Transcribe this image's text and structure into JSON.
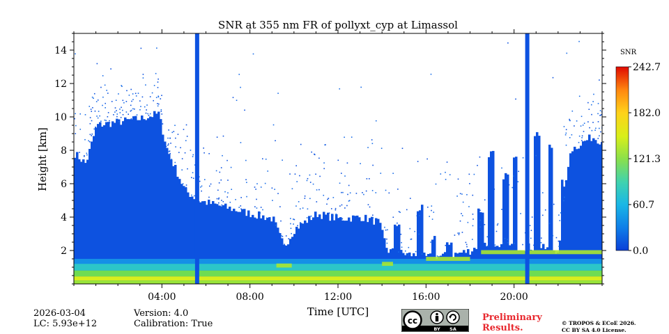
{
  "chart_data": {
    "type": "heatmap",
    "title": "SNR at 355 nm FR of pollyxt_cyp at Limassol",
    "xlabel": "Time [UTC]",
    "ylabel": "Height [km]",
    "xlim_hours": [
      0,
      24
    ],
    "ylim": [
      0,
      15
    ],
    "x_ticks": [
      {
        "hour": 4,
        "label": "04:00"
      },
      {
        "hour": 8,
        "label": "08:00"
      },
      {
        "hour": 12,
        "label": "12:00"
      },
      {
        "hour": 16,
        "label": "16:00"
      },
      {
        "hour": 20,
        "label": "20:00"
      }
    ],
    "y_ticks": [
      {
        "value": 2,
        "label": "2"
      },
      {
        "value": 4,
        "label": "4"
      },
      {
        "value": 6,
        "label": "6"
      },
      {
        "value": 8,
        "label": "8"
      },
      {
        "value": 10,
        "label": "10"
      },
      {
        "value": 12,
        "label": "12"
      },
      {
        "value": 14,
        "label": "14"
      }
    ],
    "colorbar": {
      "label": "SNR",
      "min": 0.0,
      "max": 242.7,
      "ticks": [
        {
          "value": 0.0,
          "label": "0.0"
        },
        {
          "value": 60.7,
          "label": "60.7"
        },
        {
          "value": 121.3,
          "label": "121.3"
        },
        {
          "value": 182.0,
          "label": "182.0"
        },
        {
          "value": 242.7,
          "label": "242.7"
        }
      ],
      "colormap": [
        "#0a3fd8",
        "#0f7ce8",
        "#1ab7e6",
        "#3fd2b0",
        "#8be04a",
        "#d8ef1a",
        "#ffd21a",
        "#ff8a10",
        "#ff3a0a",
        "#e00a00"
      ]
    },
    "data_gaps_hours": [
      5.6,
      20.6
    ],
    "signal_top_km": [
      [
        0.0,
        7.8
      ],
      [
        0.5,
        7.2
      ],
      [
        1.0,
        9.5
      ],
      [
        2.0,
        9.7
      ],
      [
        3.0,
        9.9
      ],
      [
        3.8,
        10.2
      ],
      [
        4.2,
        8.0
      ],
      [
        5.0,
        5.6
      ],
      [
        5.6,
        5.0
      ],
      [
        6.5,
        4.7
      ],
      [
        8.0,
        4.2
      ],
      [
        9.0,
        3.9
      ],
      [
        9.5,
        2.2
      ],
      [
        10.0,
        3.3
      ],
      [
        11.0,
        4.2
      ],
      [
        12.0,
        3.9
      ],
      [
        13.0,
        4.0
      ],
      [
        13.8,
        3.7
      ],
      [
        14.2,
        2.0
      ],
      [
        15.0,
        1.8
      ],
      [
        16.0,
        1.6
      ],
      [
        17.0,
        1.7
      ],
      [
        18.0,
        2.0
      ],
      [
        18.5,
        2.5
      ],
      [
        19.0,
        2.0
      ],
      [
        19.5,
        2.2
      ],
      [
        20.0,
        2.2
      ],
      [
        21.0,
        2.2
      ],
      [
        22.0,
        2.0
      ],
      [
        22.5,
        8.0
      ],
      [
        23.5,
        8.8
      ],
      [
        24.0,
        8.5
      ]
    ],
    "towers": [
      {
        "hour": 14.6,
        "top_km": 3.6
      },
      {
        "hour": 15.7,
        "top_km": 4.5
      },
      {
        "hour": 16.3,
        "top_km": 2.8
      },
      {
        "hour": 17.0,
        "top_km": 2.5
      },
      {
        "hour": 18.4,
        "top_km": 4.4
      },
      {
        "hour": 18.9,
        "top_km": 7.8
      },
      {
        "hour": 19.6,
        "top_km": 6.5
      },
      {
        "hour": 20.0,
        "top_km": 7.8
      },
      {
        "hour": 21.0,
        "top_km": 9.0
      },
      {
        "hour": 21.6,
        "top_km": 8.2
      },
      {
        "hour": 22.2,
        "top_km": 6.0
      }
    ],
    "aerosol_layer": {
      "base_km": 0.2,
      "top_km": 1.2,
      "peak_snr": 160
    },
    "elevated_layers": [
      {
        "start_hour": 9.2,
        "end_hour": 9.9,
        "height_km": 1.1
      },
      {
        "start_hour": 14.0,
        "end_hour": 14.5,
        "height_km": 1.2
      },
      {
        "start_hour": 16.0,
        "end_hour": 18.0,
        "height_km": 1.5
      },
      {
        "start_hour": 18.5,
        "end_hour": 20.5,
        "height_km": 1.9
      },
      {
        "start_hour": 20.7,
        "end_hour": 24.0,
        "height_km": 1.9
      }
    ]
  },
  "footer": {
    "date": "2026-03-04",
    "lc": "LC: 5.93e+12",
    "version": "Version: 4.0",
    "calibration": "Calibration: True",
    "preliminary_line1": "Preliminary",
    "preliminary_line2": "Results.",
    "copyright_line1": "© TROPOS & ECoE 2026.",
    "copyright_line2": "CC BY SA 4.0 License.",
    "license_icons": {
      "by": "BY",
      "sa": "SA",
      "cc": "cc"
    }
  }
}
